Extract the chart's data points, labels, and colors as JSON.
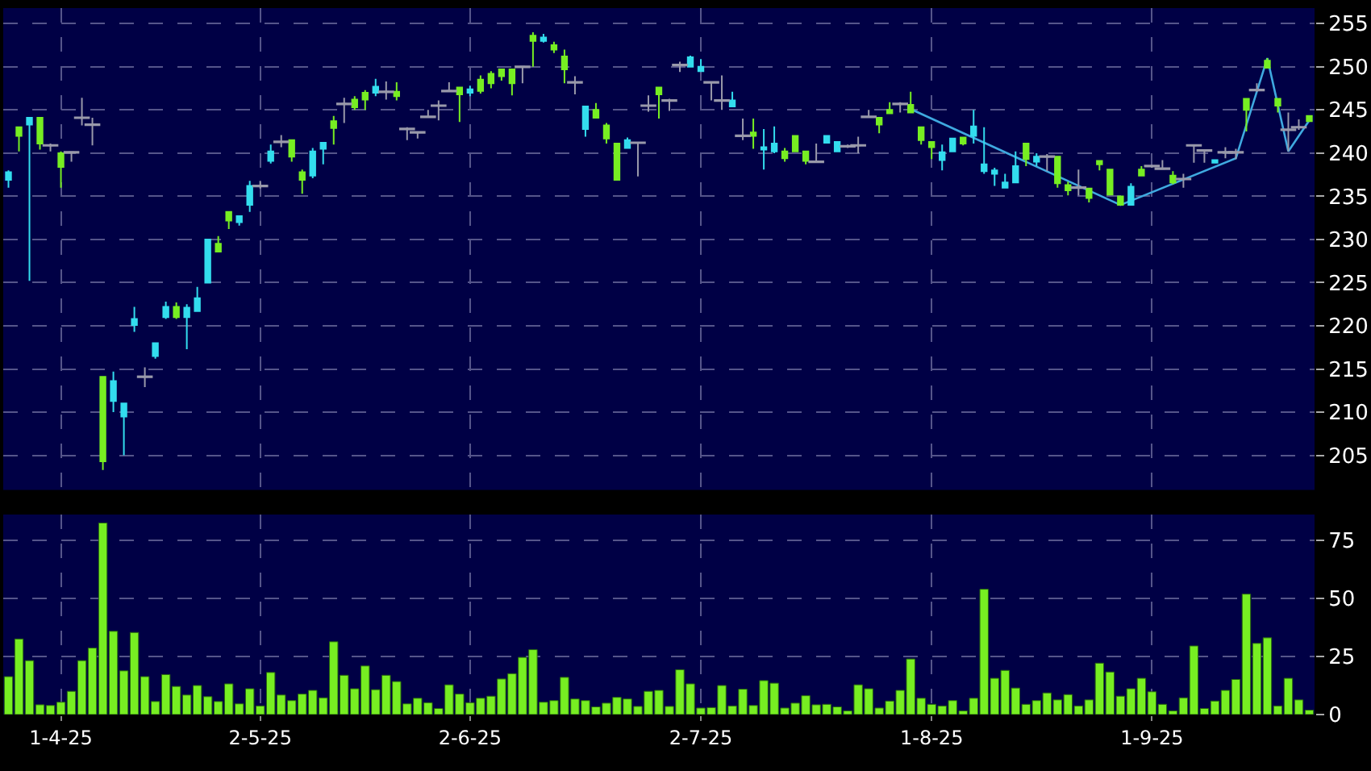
{
  "chart_data": [
    {
      "type": "candlestick",
      "categories": [
        null,
        null,
        null,
        null,
        null,
        null,
        null,
        null,
        null,
        null,
        null,
        null,
        null,
        null,
        null,
        null,
        null,
        null,
        null,
        null,
        null,
        null,
        null,
        null,
        null,
        null,
        null,
        null,
        null,
        null,
        null,
        null,
        null,
        null,
        null,
        null,
        null,
        null,
        null,
        null,
        null,
        null,
        null,
        null,
        null,
        null,
        null,
        null,
        null,
        null,
        null,
        null,
        null,
        null,
        null,
        null,
        null,
        null,
        null,
        null,
        null,
        null,
        null,
        null,
        null,
        null,
        null,
        null,
        null,
        null,
        null,
        null,
        null,
        null,
        null,
        null,
        null,
        null,
        null,
        null,
        null,
        null,
        null,
        null,
        null,
        null,
        null,
        null,
        null,
        null,
        null,
        null,
        null,
        null,
        null,
        null,
        null,
        null,
        null,
        null,
        null,
        null,
        null,
        null,
        null,
        null,
        null,
        null,
        null,
        null,
        null,
        null,
        null,
        null,
        null,
        null,
        null,
        null,
        null,
        null,
        null,
        null,
        null,
        null,
        null
      ],
      "ohlc": [
        [
          236.9,
          238.0,
          236.0,
          237.8
        ],
        [
          243.0,
          243.0,
          240.2,
          242.0
        ],
        [
          243.3,
          244.1,
          225.2,
          244.1
        ],
        [
          244.1,
          244.1,
          240.4,
          241.1
        ],
        [
          240.9,
          241.1,
          240.2,
          240.9
        ],
        [
          240.0,
          240.2,
          236.0,
          238.4
        ],
        [
          240.1,
          240.1,
          239.0,
          240.1
        ],
        [
          244.1,
          246.4,
          243.2,
          244.1
        ],
        [
          243.3,
          244.1,
          240.9,
          243.3
        ],
        [
          214.1,
          214.1,
          203.3,
          204.3
        ],
        [
          211.3,
          214.7,
          210.0,
          213.6
        ],
        [
          209.5,
          211.0,
          205.0,
          211.0
        ],
        [
          220.1,
          222.2,
          219.3,
          220.8
        ],
        [
          214.1,
          215.2,
          212.9,
          214.1
        ],
        [
          216.5,
          218.0,
          216.2,
          218.0
        ],
        [
          221.0,
          222.8,
          220.8,
          222.2
        ],
        [
          222.2,
          222.7,
          220.8,
          221.0
        ],
        [
          221.0,
          222.5,
          217.3,
          222.1
        ],
        [
          221.7,
          224.5,
          221.7,
          223.2
        ],
        [
          225.0,
          230.0,
          225.0,
          230.0
        ],
        [
          229.5,
          230.4,
          228.6,
          228.6
        ],
        [
          233.2,
          233.2,
          231.2,
          232.2
        ],
        [
          232.0,
          232.7,
          231.6,
          232.7
        ],
        [
          234.0,
          236.8,
          233.2,
          236.2
        ],
        [
          236.2,
          236.8,
          235.9,
          236.2
        ],
        [
          239.1,
          241.0,
          238.8,
          240.2
        ],
        [
          241.3,
          242.1,
          240.7,
          241.3
        ],
        [
          241.5,
          241.5,
          239.0,
          239.6
        ],
        [
          237.8,
          238.1,
          235.3,
          236.9
        ],
        [
          237.4,
          240.6,
          237.1,
          240.2
        ],
        [
          240.5,
          241.2,
          238.7,
          241.2
        ],
        [
          243.7,
          244.3,
          241.0,
          242.9
        ],
        [
          245.7,
          246.4,
          243.5,
          245.7
        ],
        [
          246.2,
          246.6,
          245.0,
          245.3
        ],
        [
          247.0,
          247.3,
          245.0,
          246.2
        ],
        [
          247.0,
          248.6,
          246.6,
          247.7
        ],
        [
          247.1,
          248.3,
          246.2,
          247.1
        ],
        [
          247.1,
          248.2,
          246.1,
          246.6
        ],
        [
          242.8,
          243.0,
          241.5,
          242.8
        ],
        [
          242.4,
          242.4,
          241.7,
          242.4
        ],
        [
          244.2,
          245.0,
          244.2,
          244.2
        ],
        [
          245.5,
          246.1,
          243.8,
          245.5
        ],
        [
          247.2,
          248.2,
          247.1,
          247.2
        ],
        [
          247.6,
          247.6,
          243.6,
          246.8
        ],
        [
          247.0,
          247.8,
          246.6,
          247.4
        ],
        [
          248.5,
          249.0,
          246.9,
          247.2
        ],
        [
          249.2,
          249.5,
          247.5,
          248.1
        ],
        [
          249.7,
          249.7,
          248.4,
          248.9
        ],
        [
          249.7,
          249.7,
          246.7,
          248.1
        ],
        [
          250.0,
          250.0,
          248.1,
          250.0
        ],
        [
          253.6,
          254.0,
          250.0,
          253.0
        ],
        [
          253.0,
          253.8,
          252.8,
          253.4
        ],
        [
          252.5,
          252.9,
          251.6,
          252.0
        ],
        [
          251.2,
          252.0,
          248.1,
          249.7
        ],
        [
          248.2,
          248.9,
          246.8,
          248.2
        ],
        [
          242.8,
          245.4,
          241.9,
          245.4
        ],
        [
          245.0,
          245.8,
          244.1,
          244.1
        ],
        [
          243.2,
          243.5,
          241.1,
          241.7
        ],
        [
          241.1,
          241.1,
          236.9,
          236.9
        ],
        [
          240.6,
          241.8,
          240.6,
          241.5
        ],
        [
          241.2,
          241.2,
          237.3,
          241.2
        ],
        [
          245.5,
          246.7,
          244.8,
          245.5
        ],
        [
          247.6,
          247.6,
          244.0,
          246.8
        ],
        [
          246.1,
          246.3,
          244.9,
          246.1
        ],
        [
          250.2,
          250.6,
          249.4,
          250.2
        ],
        [
          250.0,
          251.3,
          250.0,
          251.1
        ],
        [
          249.5,
          250.9,
          249.5,
          250.0
        ],
        [
          248.2,
          248.2,
          246.1,
          248.2
        ],
        [
          246.1,
          249.0,
          245.0,
          246.1
        ],
        [
          245.4,
          247.1,
          245.4,
          246.1
        ],
        [
          242.0,
          244.0,
          241.5,
          242.0
        ],
        [
          242.4,
          244.0,
          240.5,
          242.0
        ],
        [
          240.4,
          242.8,
          238.1,
          240.7
        ],
        [
          240.2,
          243.1,
          240.0,
          241.1
        ],
        [
          240.2,
          240.6,
          239.0,
          239.4
        ],
        [
          242.0,
          242.0,
          240.2,
          240.2
        ],
        [
          240.2,
          240.2,
          238.7,
          239.1
        ],
        [
          239.0,
          241.1,
          239.0,
          239.0
        ],
        [
          241.2,
          242.0,
          241.2,
          242.0
        ],
        [
          240.2,
          241.3,
          240.2,
          241.3
        ],
        [
          240.8,
          241.0,
          240.6,
          240.8
        ],
        [
          240.9,
          241.9,
          240.0,
          240.9
        ],
        [
          244.2,
          245.0,
          244.1,
          244.2
        ],
        [
          244.1,
          244.1,
          242.3,
          243.3
        ],
        [
          245.0,
          245.9,
          244.6,
          244.6
        ],
        [
          245.7,
          245.9,
          244.7,
          245.7
        ],
        [
          245.6,
          247.1,
          244.6,
          244.7
        ],
        [
          243.0,
          243.0,
          241.0,
          241.5
        ],
        [
          241.3,
          241.3,
          239.3,
          240.7
        ],
        [
          239.2,
          241.0,
          238.0,
          240.1
        ],
        [
          240.2,
          241.7,
          240.2,
          241.7
        ],
        [
          241.8,
          241.8,
          240.9,
          241.1
        ],
        [
          242.0,
          245.0,
          241.1,
          243.1
        ],
        [
          237.9,
          243.0,
          237.6,
          238.7
        ],
        [
          237.6,
          238.3,
          236.2,
          238.0
        ],
        [
          236.0,
          237.6,
          236.0,
          236.6
        ],
        [
          236.6,
          240.2,
          236.6,
          238.5
        ],
        [
          241.1,
          241.1,
          238.5,
          239.3
        ],
        [
          239.0,
          240.0,
          238.5,
          239.6
        ],
        [
          239.6,
          239.9,
          237.9,
          239.6
        ],
        [
          239.6,
          239.6,
          236.0,
          236.5
        ],
        [
          236.3,
          236.7,
          235.1,
          235.7
        ],
        [
          236.0,
          238.1,
          235.1,
          236.0
        ],
        [
          235.9,
          235.9,
          234.3,
          234.8
        ],
        [
          239.1,
          239.2,
          238.0,
          238.7
        ],
        [
          238.1,
          238.1,
          235.2,
          235.2
        ],
        [
          235.0,
          235.0,
          234.0,
          234.0
        ],
        [
          234.0,
          236.5,
          234.0,
          236.1
        ],
        [
          238.1,
          238.5,
          237.4,
          237.4
        ],
        [
          238.5,
          238.6,
          238.3,
          238.5
        ],
        [
          238.2,
          239.2,
          238.2,
          238.2
        ],
        [
          237.4,
          237.9,
          236.4,
          236.6
        ],
        [
          237.0,
          237.6,
          236.0,
          237.0
        ],
        [
          240.9,
          241.0,
          238.9,
          240.9
        ],
        [
          240.3,
          240.4,
          238.9,
          240.3
        ],
        [
          238.9,
          239.2,
          238.9,
          239.2
        ],
        [
          240.1,
          240.7,
          239.4,
          240.1
        ],
        [
          240.1,
          240.5,
          239.3,
          240.1
        ],
        [
          246.3,
          246.3,
          242.5,
          245.0
        ],
        [
          247.3,
          248.1,
          247.1,
          247.3
        ],
        [
          250.7,
          251.0,
          249.9,
          249.9
        ],
        [
          246.3,
          246.3,
          244.7,
          245.5
        ],
        [
          242.7,
          244.7,
          240.2,
          242.7
        ],
        [
          243.0,
          243.9,
          242.7,
          243.0
        ],
        [
          244.3,
          244.3,
          243.7,
          243.7
        ]
      ],
      "colors": [
        "#33ddee",
        "#77ee22",
        "#33ddee",
        "#77ee22",
        "#9999aa",
        "#77ee22",
        "#9999aa",
        "#9999aa",
        "#9999aa",
        "#77ee22",
        "#33ddee",
        "#33ddee",
        "#33ddee",
        "#9999aa",
        "#33ddee",
        "#33ddee",
        "#77ee22",
        "#33ddee",
        "#33ddee",
        "#33ddee",
        "#77ee22",
        "#77ee22",
        "#33ddee",
        "#33ddee",
        "#9999aa",
        "#33ddee",
        "#9999aa",
        "#77ee22",
        "#77ee22",
        "#33ddee",
        "#33ddee",
        "#77ee22",
        "#9999aa",
        "#77ee22",
        "#77ee22",
        "#33ddee",
        "#9999aa",
        "#77ee22",
        "#9999aa",
        "#9999aa",
        "#9999aa",
        "#9999aa",
        "#9999aa",
        "#77ee22",
        "#33ddee",
        "#77ee22",
        "#77ee22",
        "#77ee22",
        "#77ee22",
        "#9999aa",
        "#77ee22",
        "#33ddee",
        "#77ee22",
        "#77ee22",
        "#9999aa",
        "#33ddee",
        "#77ee22",
        "#77ee22",
        "#77ee22",
        "#33ddee",
        "#9999aa",
        "#9999aa",
        "#77ee22",
        "#9999aa",
        "#9999aa",
        "#33ddee",
        "#33ddee",
        "#9999aa",
        "#9999aa",
        "#33ddee",
        "#9999aa",
        "#77ee22",
        "#33ddee",
        "#33ddee",
        "#77ee22",
        "#77ee22",
        "#77ee22",
        "#9999aa",
        "#33ddee",
        "#33ddee",
        "#9999aa",
        "#9999aa",
        "#9999aa",
        "#77ee22",
        "#77ee22",
        "#9999aa",
        "#77ee22",
        "#77ee22",
        "#77ee22",
        "#33ddee",
        "#33ddee",
        "#77ee22",
        "#33ddee",
        "#33ddee",
        "#33ddee",
        "#33ddee",
        "#33ddee",
        "#77ee22",
        "#33ddee",
        "#9999aa",
        "#77ee22",
        "#77ee22",
        "#9999aa",
        "#77ee22",
        "#77ee22",
        "#77ee22",
        "#77ee22",
        "#33ddee",
        "#77ee22",
        "#9999aa",
        "#9999aa",
        "#77ee22",
        "#9999aa",
        "#9999aa",
        "#9999aa",
        "#33ddee",
        "#9999aa",
        "#9999aa",
        "#77ee22",
        "#9999aa",
        "#77ee22",
        "#77ee22",
        "#9999aa",
        "#9999aa",
        "#77ee22"
      ],
      "series": [
        {
          "type": "line",
          "color": "#3fa9e0",
          "values": [
            null,
            null,
            null,
            null,
            null,
            null,
            null,
            null,
            null,
            null,
            null,
            null,
            null,
            null,
            null,
            null,
            null,
            null,
            null,
            null,
            null,
            null,
            null,
            null,
            null,
            null,
            null,
            null,
            null,
            null,
            null,
            null,
            null,
            null,
            null,
            null,
            null,
            null,
            null,
            null,
            null,
            null,
            null,
            null,
            null,
            null,
            null,
            null,
            null,
            null,
            null,
            null,
            null,
            null,
            null,
            null,
            null,
            null,
            null,
            null,
            null,
            null,
            null,
            null,
            null,
            null,
            null,
            null,
            null,
            null,
            null,
            null,
            null,
            null,
            null,
            null,
            null,
            null,
            null,
            null,
            null,
            null,
            null,
            null,
            null,
            null,
            245.1,
            null,
            null,
            null,
            null,
            null,
            null,
            null,
            null,
            null,
            null,
            null,
            null,
            null,
            null,
            null,
            null,
            null,
            null,
            null,
            234.0,
            null,
            null,
            null,
            null,
            null,
            null,
            null,
            null,
            null,
            null,
            239.4,
            null,
            null,
            251.0,
            null,
            240.2,
            null,
            243.8
          ]
        }
      ],
      "ylim": [
        201,
        256.8
      ],
      "yticks": [
        205,
        210,
        215,
        220,
        225,
        230,
        235,
        240,
        245,
        250,
        255
      ],
      "grid": true,
      "tick_labels": "y"
    },
    {
      "type": "bar",
      "categories": [
        null,
        null,
        null,
        null,
        null,
        "1-4-25",
        null,
        null,
        null,
        null,
        null,
        null,
        null,
        null,
        null,
        null,
        null,
        null,
        null,
        null,
        null,
        null,
        null,
        null,
        "2-5-25",
        null,
        null,
        null,
        null,
        null,
        null,
        null,
        null,
        null,
        null,
        null,
        null,
        null,
        null,
        null,
        null,
        null,
        null,
        null,
        "2-6-25",
        null,
        null,
        null,
        null,
        null,
        null,
        null,
        null,
        null,
        null,
        null,
        null,
        null,
        null,
        null,
        null,
        null,
        null,
        null,
        null,
        null,
        "2-7-25",
        null,
        null,
        null,
        null,
        null,
        null,
        null,
        null,
        null,
        null,
        null,
        null,
        null,
        null,
        null,
        null,
        null,
        null,
        null,
        null,
        null,
        "1-8-25",
        null,
        null,
        null,
        null,
        null,
        null,
        null,
        null,
        null,
        null,
        null,
        null,
        null,
        null,
        null,
        null,
        null,
        null,
        null,
        null,
        "1-9-25",
        null,
        null,
        null,
        null,
        null,
        null,
        null,
        null,
        null,
        null,
        null,
        null,
        null,
        null,
        null
      ],
      "color": "#77ee22",
      "values": [
        16.3,
        32.5,
        23.2,
        4.2,
        3.9,
        5.3,
        10.0,
        23.2,
        28.6,
        82.4,
        35.8,
        18.8,
        35.3,
        16.3,
        5.6,
        17.2,
        12.1,
        8.4,
        12.5,
        7.7,
        5.6,
        13.2,
        4.6,
        11.1,
        3.7,
        18.1,
        8.4,
        6.0,
        8.8,
        10.4,
        7.2,
        31.3,
        16.9,
        11.1,
        20.9,
        10.7,
        16.9,
        14.2,
        4.6,
        7.0,
        5.1,
        2.6,
        12.8,
        8.8,
        5.1,
        7.0,
        7.9,
        15.3,
        17.6,
        24.6,
        27.9,
        5.3,
        6.0,
        16.0,
        6.7,
        6.0,
        3.3,
        4.9,
        7.4,
        6.7,
        3.5,
        10.0,
        10.4,
        3.5,
        19.3,
        13.2,
        2.8,
        3.0,
        12.5,
        3.7,
        10.9,
        3.9,
        14.6,
        13.5,
        2.8,
        4.9,
        8.1,
        4.2,
        4.4,
        3.3,
        1.6,
        12.8,
        11.1,
        2.8,
        5.8,
        10.4,
        23.9,
        7.0,
        4.4,
        3.7,
        6.0,
        1.6,
        7.0,
        53.9,
        15.6,
        19.0,
        11.4,
        4.4,
        6.0,
        9.3,
        6.3,
        8.6,
        3.7,
        6.3,
        22.1,
        18.3,
        7.9,
        11.1,
        15.6,
        9.8,
        4.4,
        1.6,
        7.2,
        29.5,
        2.6,
        5.8,
        10.4,
        15.1,
        51.8,
        30.6,
        33.0,
        3.7,
        15.6,
        6.3,
        1.9
      ],
      "ylim": [
        0,
        86
      ],
      "yticks": [
        0,
        25,
        50,
        75
      ],
      "grid": true
    }
  ]
}
